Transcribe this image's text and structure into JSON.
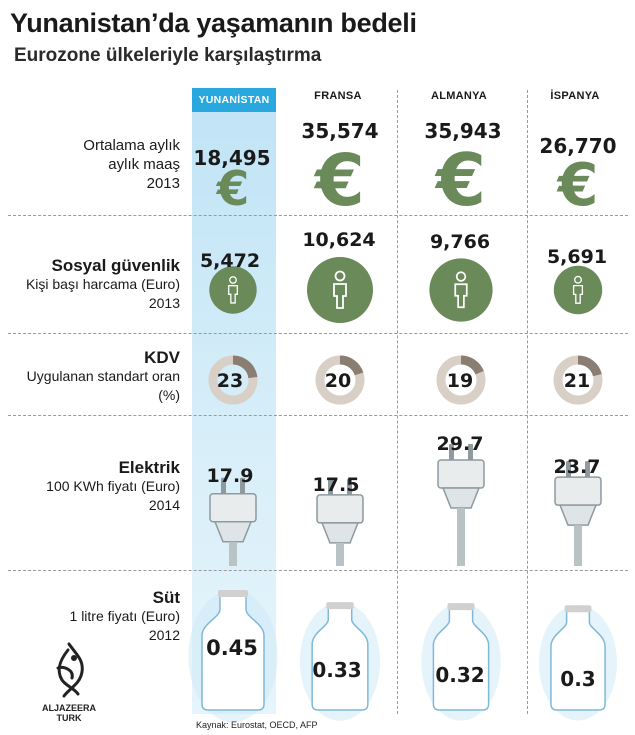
{
  "title": "Yunanistan’da yaşamanın bedeli",
  "subtitle": "Eurozone ülkeleriyle karşılaştırma",
  "source": "Kaynak: Eurostat, OECD, AFP",
  "logo": {
    "line1": "ALJAZEERA",
    "line2": "TURK"
  },
  "colors": {
    "accent": "#29a8e0",
    "highlight": "#cfe9f6",
    "green": "#6a8a5a",
    "donut_track": "#d8cfc6",
    "donut_fill": "#8a7d72"
  },
  "icons": {
    "salary": "euro-icon",
    "social": "person-icon",
    "vat": "donut-icon",
    "electricity": "plug-icon",
    "milk": "milk-bottle-icon"
  },
  "chart_data": {
    "type": "table",
    "title": "Yunanistan’da yaşamanın bedeli",
    "subtitle": "Eurozone ülkeleriyle karşılaştırma",
    "countries": [
      "YUNANİSTAN",
      "FRANSA",
      "ALMANYA",
      "İSPANYA"
    ],
    "highlighted_country": "YUNANİSTAN",
    "rows": [
      {
        "key": "salary",
        "label_lines": [
          "Ortalama aylık",
          "aylık maaş",
          "2013"
        ],
        "bold_label": "",
        "display": [
          "18,495",
          "35,574",
          "35,943",
          "26,770"
        ],
        "values": [
          18495,
          35574,
          35943,
          26770
        ]
      },
      {
        "key": "social",
        "bold_label": "Sosyal güvenlik",
        "label_lines": [
          "Kişi başı harcama (Euro)",
          "2013"
        ],
        "display": [
          "5,472",
          "10,624",
          "9,766",
          "5,691"
        ],
        "values": [
          5472,
          10624,
          9766,
          5691
        ]
      },
      {
        "key": "vat",
        "bold_label": "KDV",
        "label_lines": [
          "Uygulanan standart oran",
          "(%)"
        ],
        "display": [
          "23",
          "20",
          "19",
          "21"
        ],
        "values": [
          23,
          20,
          19,
          21
        ]
      },
      {
        "key": "electricity",
        "bold_label": "Elektrik",
        "label_lines": [
          "100 KWh fiyatı (Euro)",
          "2014"
        ],
        "display": [
          "17.9",
          "17.5",
          "29.7",
          "23.7"
        ],
        "values": [
          17.9,
          17.5,
          29.7,
          23.7
        ]
      },
      {
        "key": "milk",
        "bold_label": "Süt",
        "label_lines": [
          "1 litre fiyatı (Euro)",
          "2012"
        ],
        "display": [
          "0.45",
          "0.33",
          "0.32",
          "0.3"
        ],
        "values": [
          0.45,
          0.33,
          0.32,
          0.3
        ]
      }
    ]
  }
}
